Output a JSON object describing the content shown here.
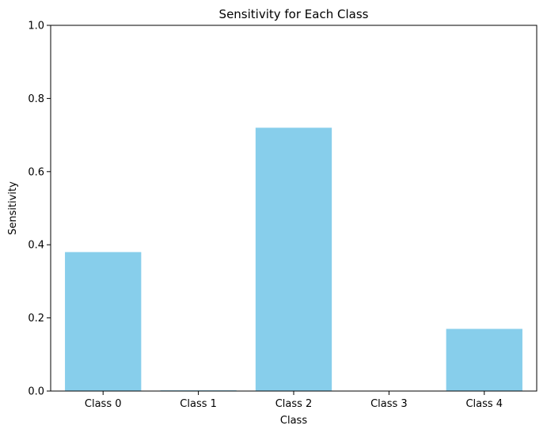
{
  "chart_data": {
    "type": "bar",
    "title": "Sensitivity for Each Class",
    "xlabel": "Class",
    "ylabel": "Sensitivity",
    "categories": [
      "Class 0",
      "Class 1",
      "Class 2",
      "Class 3",
      "Class 4"
    ],
    "values": [
      0.38,
      0.002,
      0.72,
      0.0,
      0.17
    ],
    "ylim": [
      0,
      1.0
    ],
    "yticks": [
      "0.0",
      "0.2",
      "0.4",
      "0.6",
      "0.8",
      "1.0"
    ],
    "ytick_values": [
      0,
      0.2,
      0.4,
      0.6,
      0.8,
      1.0
    ],
    "grid": false,
    "bar_color": "#87CEEB",
    "axis_color": "#000000"
  }
}
